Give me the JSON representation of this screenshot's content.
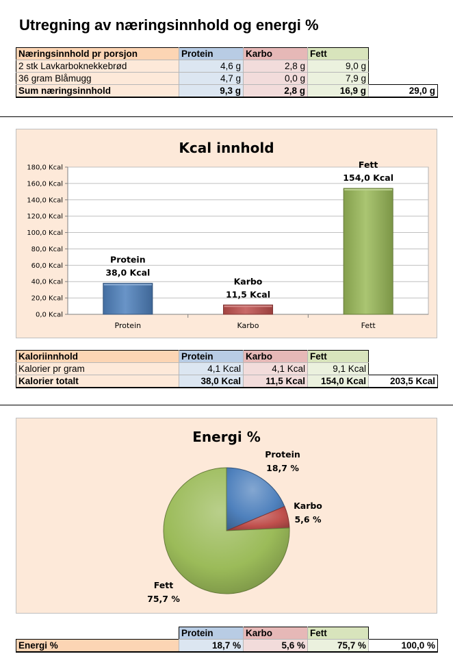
{
  "title": "Utregning av næringsinnhold og energi %",
  "table1": {
    "header": [
      "Næringsinnhold pr porsjon",
      "Protein",
      "Karbo",
      "Fett"
    ],
    "rows": [
      {
        "label": "2 stk Lavkarboknekkebrød",
        "protein": "4,6 g",
        "karbo": "2,8 g",
        "fett": "9,0 g"
      },
      {
        "label": "36 gram Blåmugg",
        "protein": "4,7 g",
        "karbo": "0,0 g",
        "fett": "7,9 g"
      }
    ],
    "sum": {
      "label": "Sum næringsinnhold",
      "protein": "9,3 g",
      "karbo": "2,8 g",
      "fett": "16,9 g",
      "total": "29,0 g"
    }
  },
  "table2": {
    "header": [
      "Kaloriinnhold",
      "Protein",
      "Karbo",
      "Fett"
    ],
    "per_gram": {
      "label": "Kalorier pr gram",
      "protein": "4,1 Kcal",
      "karbo": "4,1 Kcal",
      "fett": "9,1 Kcal"
    },
    "total": {
      "label": "Kalorier totalt",
      "protein": "38,0 Kcal",
      "karbo": "11,5 Kcal",
      "fett": "154,0 Kcal",
      "total": "203,5 Kcal"
    }
  },
  "table3": {
    "header": [
      "Protein",
      "Karbo",
      "Fett"
    ],
    "row": {
      "label": "Energi %",
      "protein": "18,7 %",
      "karbo": "5,6 %",
      "fett": "75,7 %",
      "total": "100,0 %"
    }
  },
  "colors": {
    "protein": "#4f81bd",
    "karbo": "#c0504d",
    "fett": "#9bbb59"
  },
  "chart_data": [
    {
      "type": "bar",
      "title": "Kcal innhold",
      "categories": [
        "Protein",
        "Karbo",
        "Fett"
      ],
      "values": [
        38.0,
        11.5,
        154.0
      ],
      "value_labels": [
        "38,0 Kcal",
        "11,5 Kcal",
        "154,0 Kcal"
      ],
      "ylim": [
        0,
        180
      ],
      "ytick_step": 20,
      "ytick_labels": [
        "0,0 Kcal",
        "20,0 Kcal",
        "40,0 Kcal",
        "60,0 Kcal",
        "80,0 Kcal",
        "100,0 Kcal",
        "120,0 Kcal",
        "140,0 Kcal",
        "160,0 Kcal",
        "180,0 Kcal"
      ],
      "grid": true,
      "legend": "none"
    },
    {
      "type": "pie",
      "title": "Energi %",
      "categories": [
        "Protein",
        "Karbo",
        "Fett"
      ],
      "values": [
        18.7,
        5.6,
        75.7
      ],
      "value_labels": [
        "18,7 %",
        "5,6 %",
        "75,7 %"
      ],
      "legend": "none"
    }
  ]
}
